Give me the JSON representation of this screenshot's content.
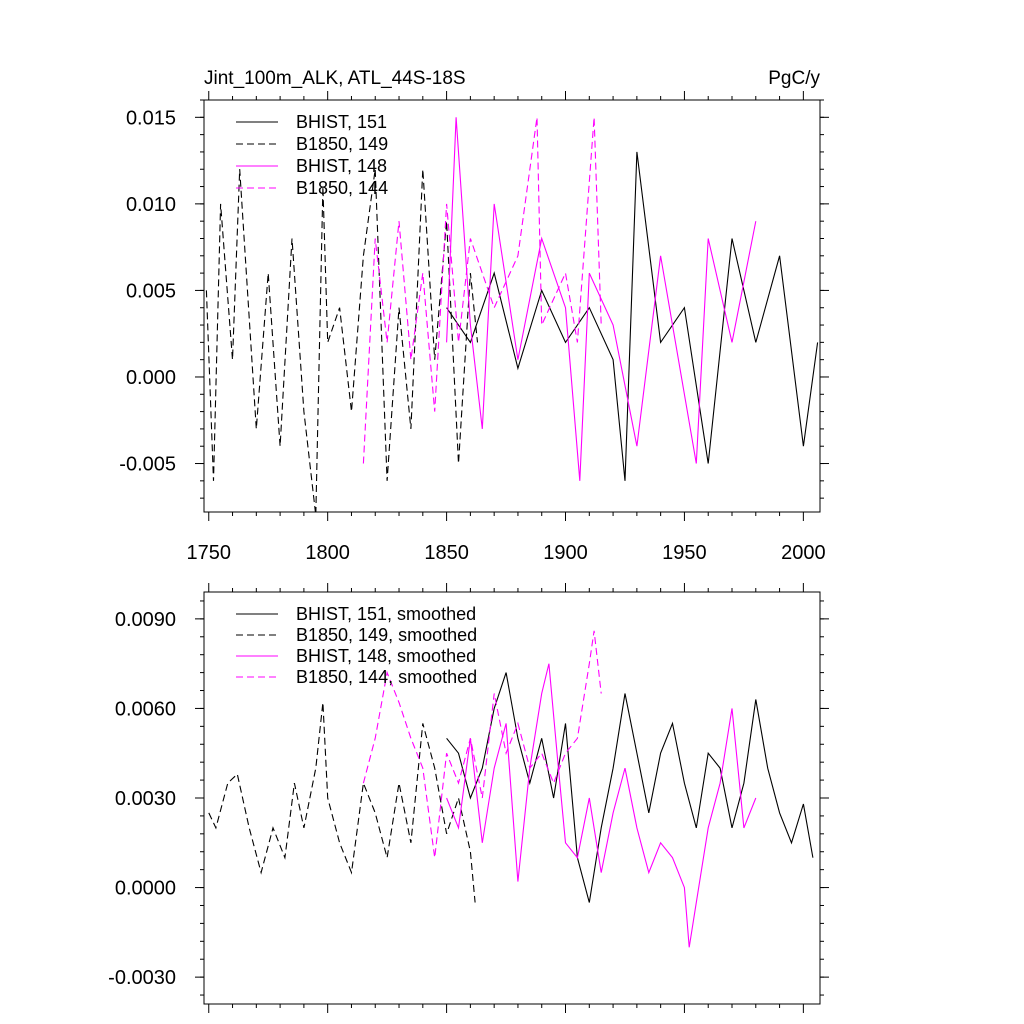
{
  "chart_data": [
    {
      "type": "line",
      "title": "Jint_100m_ALK, ATL_44S-18S",
      "units": "PgC/y",
      "xlim": [
        1748,
        2007
      ],
      "ylim": [
        -0.0078,
        0.016
      ],
      "xticks": [
        1750,
        1800,
        1850,
        1900,
        1950,
        2000
      ],
      "xtick_labels": [
        "1750",
        "1800",
        "1850",
        "1900",
        "1950",
        "2000"
      ],
      "yticks": [
        -0.005,
        0.0,
        0.005,
        0.01,
        0.015
      ],
      "ytick_labels": [
        "-0.005",
        "0.000",
        "0.005",
        "0.010",
        "0.015"
      ],
      "legend": [
        "BHIST, 151",
        "B1850, 149",
        "BHIST, 148",
        "B1850, 144"
      ],
      "series": [
        {
          "name": "BHIST, 151",
          "color": "#000000",
          "dash": "solid",
          "x": [
            1850,
            1860,
            1870,
            1880,
            1890,
            1900,
            1910,
            1920,
            1925,
            1930,
            1940,
            1950,
            1960,
            1970,
            1980,
            1990,
            2000,
            2006
          ],
          "y": [
            0.004,
            0.002,
            0.006,
            0.0005,
            0.005,
            0.002,
            0.004,
            0.001,
            -0.006,
            0.013,
            0.002,
            0.004,
            -0.005,
            0.008,
            0.002,
            0.007,
            -0.004,
            0.002
          ]
        },
        {
          "name": "B1850, 149",
          "color": "#000000",
          "dash": "dashed",
          "x": [
            1749,
            1752,
            1755,
            1760,
            1763,
            1770,
            1775,
            1780,
            1785,
            1790,
            1795,
            1798,
            1800,
            1805,
            1810,
            1815,
            1820,
            1825,
            1830,
            1835,
            1840,
            1845,
            1850,
            1855,
            1860,
            1863
          ],
          "y": [
            0.005,
            -0.006,
            0.01,
            0.001,
            0.012,
            -0.003,
            0.006,
            -0.004,
            0.008,
            -0.002,
            -0.008,
            0.011,
            0.002,
            0.004,
            -0.002,
            0.007,
            0.012,
            -0.006,
            0.004,
            -0.003,
            0.012,
            0.001,
            0.009,
            -0.005,
            0.006,
            0.002
          ]
        },
        {
          "name": "BHIST, 148",
          "color": "#ff00ff",
          "dash": "solid",
          "x": [
            1850,
            1854,
            1860,
            1865,
            1870,
            1880,
            1890,
            1900,
            1906,
            1910,
            1920,
            1930,
            1940,
            1950,
            1955,
            1960,
            1970,
            1980
          ],
          "y": [
            0.002,
            0.015,
            0.003,
            -0.003,
            0.01,
            0.001,
            0.008,
            0.004,
            -0.006,
            0.006,
            0.003,
            -0.004,
            0.007,
            -0.001,
            -0.005,
            0.008,
            0.002,
            0.009
          ]
        },
        {
          "name": "B1850, 144",
          "color": "#ff00ff",
          "dash": "dashed",
          "x": [
            1815,
            1820,
            1825,
            1830,
            1835,
            1840,
            1845,
            1850,
            1855,
            1860,
            1870,
            1880,
            1888,
            1890,
            1900,
            1905,
            1912,
            1915
          ],
          "y": [
            -0.005,
            0.008,
            0.002,
            0.009,
            0.001,
            0.006,
            -0.002,
            0.01,
            0.002,
            0.008,
            0.004,
            0.007,
            0.015,
            0.003,
            0.006,
            0.002,
            0.015,
            0.003
          ]
        }
      ]
    },
    {
      "type": "line",
      "title": "",
      "xlim": [
        1748,
        2007
      ],
      "ylim": [
        -0.0039,
        0.0099
      ],
      "xticks": [
        1750,
        1800,
        1850,
        1900,
        1950,
        2000
      ],
      "yticks": [
        -0.003,
        0.0,
        0.003,
        0.006,
        0.009
      ],
      "ytick_labels": [
        "-0.0030",
        "0.0000",
        "0.0030",
        "0.0060",
        "0.0090"
      ],
      "legend": [
        "BHIST, 151, smoothed",
        "B1850, 149, smoothed",
        "BHIST, 148, smoothed",
        "B1850, 144, smoothed"
      ],
      "series": [
        {
          "name": "BHIST, 151, smoothed",
          "color": "#000000",
          "dash": "solid",
          "x": [
            1850,
            1855,
            1860,
            1865,
            1870,
            1875,
            1880,
            1885,
            1890,
            1895,
            1900,
            1905,
            1910,
            1915,
            1920,
            1925,
            1930,
            1935,
            1940,
            1945,
            1950,
            1955,
            1960,
            1965,
            1970,
            1975,
            1980,
            1985,
            1990,
            1995,
            2000,
            2004
          ],
          "y": [
            0.005,
            0.0045,
            0.003,
            0.004,
            0.006,
            0.0072,
            0.005,
            0.0035,
            0.005,
            0.003,
            0.0055,
            0.001,
            -0.0005,
            0.002,
            0.004,
            0.0065,
            0.0045,
            0.0025,
            0.0045,
            0.0055,
            0.0035,
            0.002,
            0.0045,
            0.004,
            0.002,
            0.0035,
            0.0063,
            0.004,
            0.0025,
            0.0015,
            0.0028,
            0.001
          ]
        },
        {
          "name": "B1850, 149, smoothed",
          "color": "#000000",
          "dash": "dashed",
          "x": [
            1750,
            1753,
            1758,
            1762,
            1767,
            1772,
            1777,
            1782,
            1786,
            1790,
            1795,
            1798,
            1800,
            1805,
            1810,
            1815,
            1820,
            1825,
            1830,
            1835,
            1840,
            1845,
            1850,
            1855,
            1860,
            1862
          ],
          "y": [
            0.0025,
            0.002,
            0.0035,
            0.0038,
            0.002,
            0.0005,
            0.002,
            0.001,
            0.0035,
            0.002,
            0.004,
            0.0062,
            0.003,
            0.0015,
            0.0005,
            0.0035,
            0.0025,
            0.001,
            0.0035,
            0.0015,
            0.0055,
            0.004,
            0.0018,
            0.003,
            0.0012,
            -0.0005
          ]
        },
        {
          "name": "BHIST, 148, smoothed",
          "color": "#ff00ff",
          "dash": "solid",
          "x": [
            1850,
            1855,
            1860,
            1865,
            1870,
            1875,
            1880,
            1885,
            1890,
            1893,
            1897,
            1900,
            1905,
            1910,
            1915,
            1920,
            1925,
            1930,
            1935,
            1940,
            1945,
            1950,
            1952,
            1955,
            1960,
            1965,
            1970,
            1975,
            1980
          ],
          "y": [
            0.003,
            0.002,
            0.005,
            0.0015,
            0.004,
            0.0055,
            0.0002,
            0.004,
            0.0065,
            0.0075,
            0.004,
            0.0015,
            0.001,
            0.003,
            0.0005,
            0.0025,
            0.004,
            0.002,
            0.0005,
            0.0015,
            0.001,
            0.0,
            -0.002,
            -0.0005,
            0.002,
            0.0035,
            0.006,
            0.002,
            0.003
          ]
        },
        {
          "name": "B1850, 144, smoothed",
          "color": "#ff00ff",
          "dash": "dashed",
          "x": [
            1815,
            1820,
            1825,
            1830,
            1835,
            1840,
            1845,
            1850,
            1855,
            1860,
            1865,
            1870,
            1875,
            1880,
            1885,
            1890,
            1895,
            1900,
            1905,
            1910,
            1912,
            1915
          ],
          "y": [
            0.0035,
            0.005,
            0.0072,
            0.0062,
            0.005,
            0.004,
            0.001,
            0.0045,
            0.0035,
            0.005,
            0.003,
            0.0065,
            0.0045,
            0.0055,
            0.004,
            0.0045,
            0.0035,
            0.0045,
            0.005,
            0.0075,
            0.0086,
            0.0065
          ]
        }
      ]
    }
  ]
}
